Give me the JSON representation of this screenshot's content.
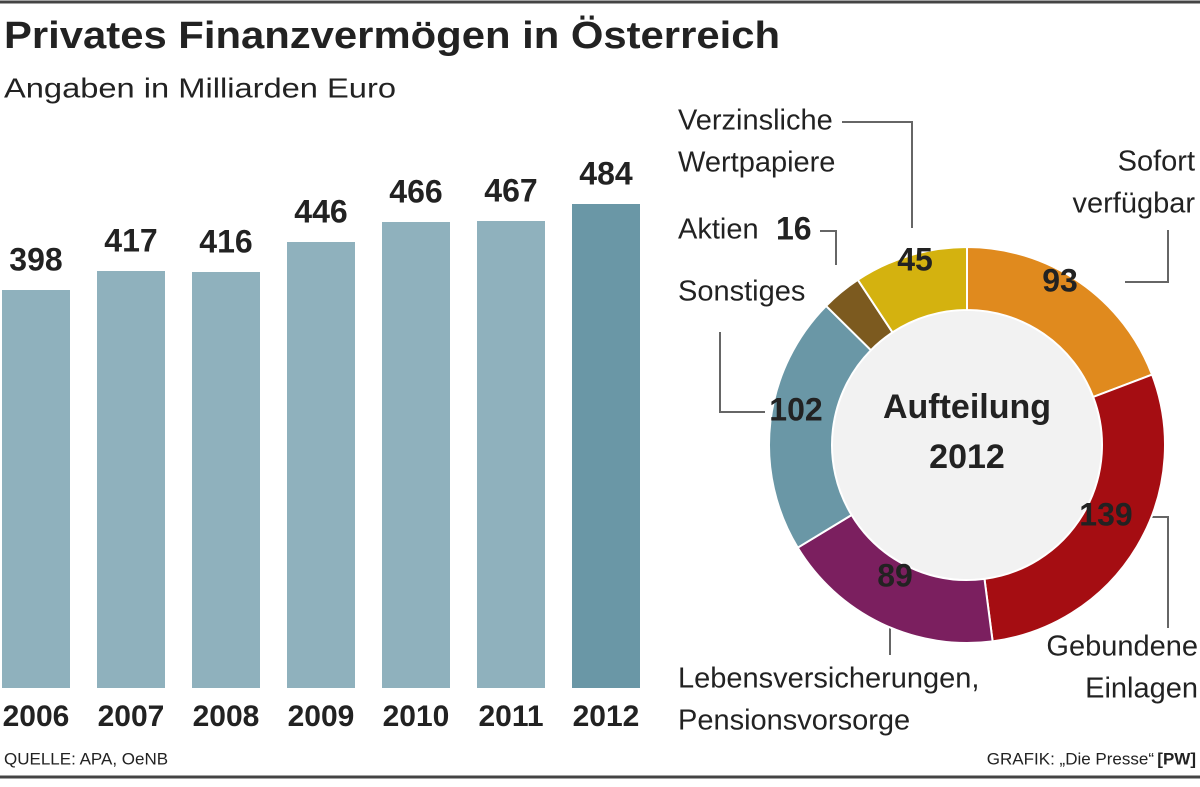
{
  "title": "Privates Finanzvermögen in Österreich",
  "subtitle": "Angaben in Milliarden Euro",
  "source": "QUELLE: APA, OeNB",
  "credit": "GRAFIK: „Die Presse“",
  "credit_tag": "[PW]",
  "chart_data": [
    {
      "type": "bar",
      "categories": [
        "2006",
        "2007",
        "2008",
        "2009",
        "2010",
        "2011",
        "2012"
      ],
      "values": [
        398,
        417,
        416,
        446,
        466,
        467,
        484
      ],
      "colors": [
        "#8fb1bd",
        "#8fb1bd",
        "#8fb1bd",
        "#8fb1bd",
        "#8fb1bd",
        "#8fb1bd",
        "#6a97a6"
      ]
    },
    {
      "type": "donut",
      "center_label": [
        "Aufteilung",
        "2012"
      ],
      "labels": [
        [
          "Sofort",
          "verfügbar"
        ],
        [
          "Gebundene",
          "Einlagen"
        ],
        [
          "Lebensversicherungen,",
          "Pensionsvorsorge"
        ],
        [
          "Sonstiges"
        ],
        [
          "Aktien"
        ],
        [
          "Verzinsliche",
          "Wertpapiere"
        ]
      ],
      "values": [
        93,
        139,
        89,
        102,
        16,
        45
      ],
      "colors": [
        "#e08a1e",
        "#a50d12",
        "#7b1f5f",
        "#6a97a6",
        "#7c5a1f",
        "#d4b20f"
      ]
    }
  ]
}
